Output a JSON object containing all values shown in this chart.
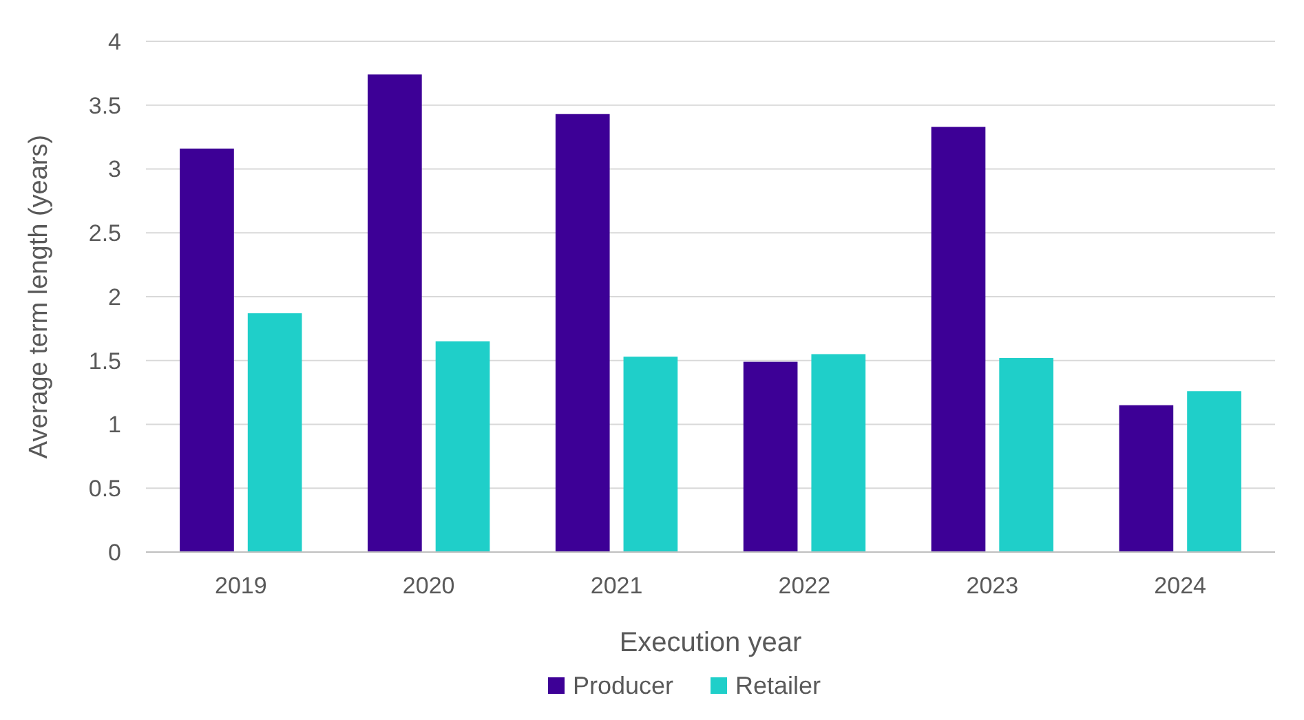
{
  "chart_data": {
    "type": "bar",
    "xlabel": "Execution year",
    "ylabel": "Average term length (years)",
    "categories": [
      "2019",
      "2020",
      "2021",
      "2022",
      "2023",
      "2024"
    ],
    "series": [
      {
        "name": "Producer",
        "color": "#3d0096",
        "values": [
          3.16,
          3.74,
          3.43,
          1.49,
          3.33,
          1.15
        ]
      },
      {
        "name": "Retailer",
        "color": "#1fcfc9",
        "values": [
          1.87,
          1.65,
          1.53,
          1.55,
          1.52,
          1.26
        ]
      }
    ],
    "ylim": [
      0,
      4
    ],
    "yticks": [
      0,
      0.5,
      1,
      1.5,
      2,
      2.5,
      3,
      3.5,
      4
    ],
    "grid": "y",
    "legend": "bottom"
  }
}
